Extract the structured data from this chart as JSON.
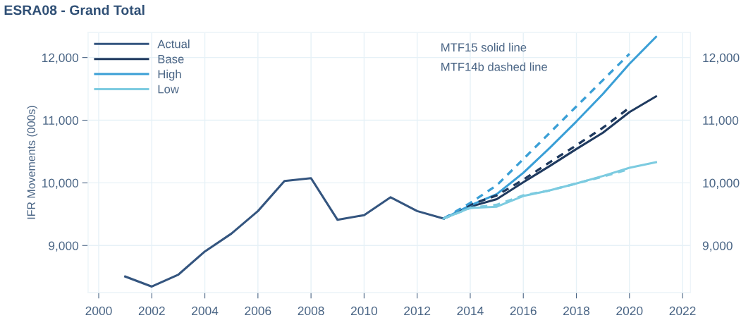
{
  "chart_data": {
    "type": "line",
    "title": "ESRA08 - Grand Total",
    "ylabel": "IFR Movements (000s)",
    "annotations": [
      "MTF15 solid line",
      "MTF14b dashed line"
    ],
    "series": [
      {
        "name": "Actual",
        "color": "#34557f",
        "line_style": "solid",
        "x": [
          2001,
          2002,
          2003,
          2004,
          2005,
          2006,
          2007,
          2008,
          2009,
          2010,
          2011,
          2012,
          2013
        ],
        "values": [
          8505,
          8345,
          8535,
          8905,
          9190,
          9550,
          10030,
          10075,
          9410,
          9485,
          9770,
          9550,
          9430
        ]
      },
      {
        "name": "Base",
        "color": "#1f3a5f",
        "line_style": "solid",
        "x": [
          2013,
          2014,
          2015,
          2016,
          2017,
          2018,
          2019,
          2020,
          2021
        ],
        "values": [
          9430,
          9620,
          9740,
          10010,
          10270,
          10540,
          10800,
          11130,
          11380
        ]
      },
      {
        "name": "High",
        "color": "#3a9fd6",
        "line_style": "solid",
        "x": [
          2013,
          2014,
          2015,
          2016,
          2017,
          2018,
          2019,
          2020,
          2021
        ],
        "values": [
          9430,
          9640,
          9820,
          10160,
          10560,
          10980,
          11420,
          11900,
          12330
        ]
      },
      {
        "name": "Low",
        "color": "#7ccbe0",
        "line_style": "solid",
        "x": [
          2013,
          2014,
          2015,
          2016,
          2017,
          2018,
          2019,
          2020,
          2021
        ],
        "values": [
          9430,
          9600,
          9620,
          9790,
          9880,
          9990,
          10110,
          10240,
          10330
        ]
      },
      {
        "color": "#1f3a5f",
        "line_style": "dashed",
        "x": [
          2013,
          2014,
          2015,
          2016,
          2017,
          2018,
          2019,
          2020
        ],
        "values": [
          9430,
          9650,
          9800,
          10050,
          10330,
          10600,
          10880,
          11200
        ]
      },
      {
        "color": "#3a9fd6",
        "line_style": "dashed",
        "x": [
          2013,
          2014,
          2015,
          2016,
          2017,
          2018,
          2019,
          2020
        ],
        "values": [
          9430,
          9680,
          9960,
          10380,
          10800,
          11220,
          11640,
          12060
        ]
      },
      {
        "color": "#7ccbe0",
        "line_style": "dashed",
        "x": [
          2013,
          2014,
          2015,
          2016,
          2017,
          2018,
          2019,
          2020
        ],
        "values": [
          9430,
          9600,
          9650,
          9800,
          9880,
          9990,
          10100,
          10220
        ]
      }
    ],
    "xlim": [
      1999.6,
      2022.3
    ],
    "xticks": [
      2000,
      2002,
      2004,
      2006,
      2008,
      2010,
      2012,
      2014,
      2016,
      2018,
      2020,
      2022
    ],
    "ylim": [
      8250,
      12400
    ],
    "yticks": [
      {
        "value": 9000,
        "label": "9,000"
      },
      {
        "value": 10000,
        "label": "10,000"
      },
      {
        "value": 11000,
        "label": "11,000"
      },
      {
        "value": 12000,
        "label": "12,000"
      }
    ],
    "y2lim": [
      8250,
      12400
    ],
    "y2ticks": [
      {
        "value": 9000,
        "label": "9,000"
      },
      {
        "value": 10000,
        "label": "10,000"
      },
      {
        "value": 11000,
        "label": "11,000"
      },
      {
        "value": 12000,
        "label": "12,000"
      }
    ],
    "grid": true,
    "legend": "top left",
    "marker": "none"
  }
}
